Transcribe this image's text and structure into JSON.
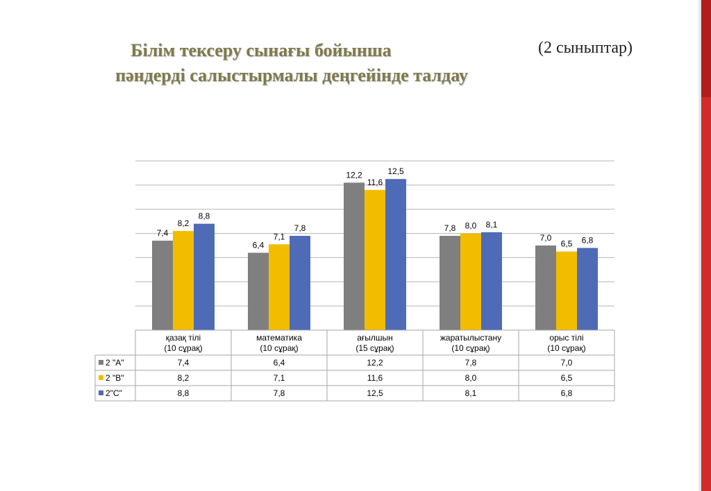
{
  "title": {
    "line1": "Білім тексеру сынағы бойынша",
    "line2": "пәндерді салыстырмалы деңгейінде талдау"
  },
  "subtitle": "(2 сыныптар)",
  "colors": {
    "title": "#7f7a4d",
    "accent_bar": "#d12b2b"
  },
  "chart_data": {
    "type": "bar",
    "categories": [
      [
        "қазақ тілі",
        "(10 сұрақ)"
      ],
      [
        "математика",
        "(10 сұрақ)"
      ],
      [
        "ағылшын",
        "(15 сұрақ)"
      ],
      [
        "жаратылыстану",
        "(10 сұрақ)"
      ],
      [
        "орыс тілі",
        "(10 сұрақ)"
      ]
    ],
    "series": [
      {
        "name": "2 \"А\"",
        "color": "#7f7f7f",
        "values": [
          7.4,
          6.4,
          12.2,
          7.8,
          7.0
        ],
        "labels": [
          "7,4",
          "6,4",
          "12,2",
          "7,8",
          "7,0"
        ]
      },
      {
        "name": "2 \"В\"",
        "color": "#f2bc00",
        "values": [
          8.2,
          7.1,
          11.6,
          8.0,
          6.5
        ],
        "labels": [
          "8,2",
          "7,1",
          "11,6",
          "8,0",
          "6,5"
        ]
      },
      {
        "name": "2\"С\"",
        "color": "#4f6bb5",
        "values": [
          8.8,
          7.8,
          12.5,
          8.1,
          6.8
        ],
        "labels": [
          "8,8",
          "7,8",
          "12,5",
          "8,1",
          "6,8"
        ]
      }
    ],
    "ylim": [
      0,
      14
    ],
    "grid": true,
    "legend": "data-table"
  }
}
